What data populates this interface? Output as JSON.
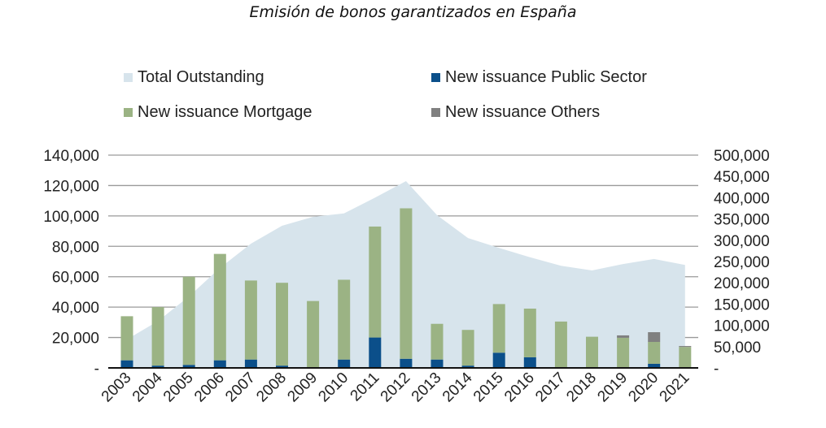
{
  "chart_data": {
    "type": "bar",
    "title": "Emisión de bonos garantizados en España",
    "categories": [
      "2003",
      "2004",
      "2005",
      "2006",
      "2007",
      "2008",
      "2009",
      "2010",
      "2011",
      "2012",
      "2013",
      "2014",
      "2015",
      "2016",
      "2017",
      "2018",
      "2019",
      "2020",
      "2021"
    ],
    "series": [
      {
        "name": "Total Outstanding",
        "kind": "area",
        "axis": "right",
        "color": "#d7e4ec",
        "values": [
          75000,
          110000,
          168000,
          235000,
          292000,
          334000,
          355000,
          363000,
          400000,
          439000,
          359000,
          305000,
          282000,
          260000,
          240000,
          229000,
          244000,
          256000,
          242000
        ]
      },
      {
        "name": "New issuance Public Sector",
        "kind": "stacked-bar",
        "axis": "left",
        "color": "#0b4f8a",
        "values": [
          5000,
          1500,
          2000,
          5000,
          5500,
          1500,
          0,
          5500,
          20000,
          6000,
          5500,
          1500,
          10000,
          7000,
          0,
          0,
          0,
          2700,
          0
        ]
      },
      {
        "name": "New issuance Mortgage",
        "kind": "stacked-bar",
        "axis": "left",
        "color": "#9bb384",
        "values": [
          29000,
          38500,
          58000,
          70000,
          52000,
          54500,
          44000,
          52500,
          73000,
          99000,
          23500,
          23500,
          32000,
          32000,
          30500,
          20500,
          19800,
          14400,
          13800
        ]
      },
      {
        "name": "New issuance Others",
        "kind": "stacked-bar",
        "axis": "left",
        "color": "#808080",
        "values": [
          0,
          0,
          0,
          0,
          0,
          0,
          0,
          0,
          0,
          0,
          0,
          0,
          0,
          0,
          0,
          0,
          1600,
          6400,
          600
        ]
      }
    ],
    "left_axis": {
      "ylim": [
        0,
        140000
      ],
      "ticks": [
        0,
        20000,
        40000,
        60000,
        80000,
        100000,
        120000,
        140000
      ],
      "tick_labels": [
        "-",
        "20,000",
        "40,000",
        "60,000",
        "80,000",
        "100,000",
        "120,000",
        "140,000"
      ]
    },
    "right_axis": {
      "ylim": [
        0,
        500000
      ],
      "ticks": [
        0,
        50000,
        100000,
        150000,
        200000,
        250000,
        300000,
        350000,
        400000,
        450000,
        500000
      ],
      "tick_labels": [
        "-",
        "50,000",
        "100,000",
        "150,000",
        "200,000",
        "250,000",
        "300,000",
        "350,000",
        "400,000",
        "450,000",
        "500,000"
      ]
    },
    "grid": true,
    "legend_position": "top"
  }
}
